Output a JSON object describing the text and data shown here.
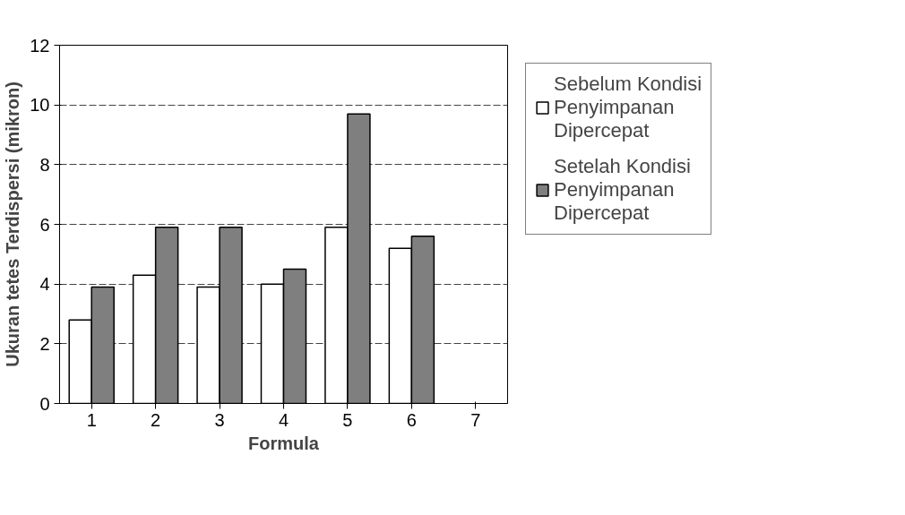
{
  "chart_data": {
    "type": "bar",
    "xlabel": "Formula",
    "ylabel": "Ukuran tetes Terdispersi (mikron)",
    "categories": [
      "1",
      "2",
      "3",
      "4",
      "5",
      "6",
      "7"
    ],
    "series": [
      {
        "name": "Sebelum Kondisi Penyimpanan Dipercepat",
        "color": "#ffffff",
        "values": [
          2.8,
          4.3,
          3.9,
          4.0,
          5.9,
          5.2,
          null
        ]
      },
      {
        "name": "Setelah Kondisi Penyimpanan Dipercepat",
        "color": "#7f7f7f",
        "values": [
          3.9,
          5.9,
          5.9,
          4.5,
          9.7,
          5.6,
          null
        ]
      }
    ],
    "ylim": [
      0,
      12
    ],
    "yticks": [
      0,
      2,
      4,
      6,
      8,
      10,
      12
    ],
    "grid": "y",
    "legend": "right"
  }
}
